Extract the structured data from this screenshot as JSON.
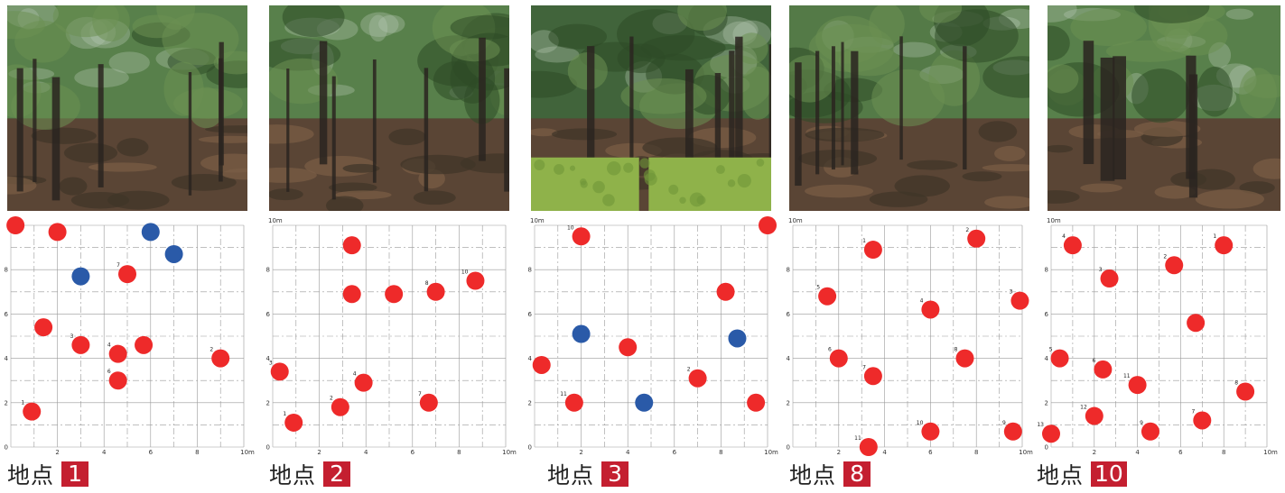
{
  "colors": {
    "red_point": "#ee2a2a",
    "blue_point": "#2a5aa8",
    "badge": "#c41f30"
  },
  "chart_data": [
    {
      "type": "scatter",
      "caption_text": "地点",
      "caption_num": "1",
      "xlim": [
        0,
        10
      ],
      "ylim": [
        0,
        10
      ],
      "x_ticks": [
        "2",
        "4",
        "6",
        "8",
        "10m"
      ],
      "y_ticks": [
        "2",
        "4",
        "6",
        "8"
      ],
      "grid": true,
      "photo": "forest",
      "points": [
        {
          "x": 0.2,
          "y": 10.0,
          "color": "red",
          "label": ""
        },
        {
          "x": 2.0,
          "y": 9.7,
          "color": "red",
          "label": ""
        },
        {
          "x": 6.0,
          "y": 9.7,
          "color": "blue",
          "label": ""
        },
        {
          "x": 7.0,
          "y": 8.7,
          "color": "blue",
          "label": ""
        },
        {
          "x": 3.0,
          "y": 7.7,
          "color": "blue",
          "label": ""
        },
        {
          "x": 5.0,
          "y": 7.8,
          "color": "red",
          "label": "7"
        },
        {
          "x": 1.4,
          "y": 5.4,
          "color": "red",
          "label": ""
        },
        {
          "x": 3.0,
          "y": 4.6,
          "color": "red",
          "label": "3"
        },
        {
          "x": 4.6,
          "y": 4.2,
          "color": "red",
          "label": "4"
        },
        {
          "x": 5.7,
          "y": 4.6,
          "color": "red",
          "label": ""
        },
        {
          "x": 9.0,
          "y": 4.0,
          "color": "red",
          "label": "2"
        },
        {
          "x": 4.6,
          "y": 3.0,
          "color": "red",
          "label": "6"
        },
        {
          "x": 0.9,
          "y": 1.6,
          "color": "red",
          "label": "1"
        }
      ]
    },
    {
      "type": "scatter",
      "caption_text": "地点",
      "caption_num": "2",
      "xlim": [
        0,
        10
      ],
      "ylim": [
        0,
        10
      ],
      "top_label": "10m",
      "x_ticks": [
        "2",
        "4",
        "6",
        "8",
        "10m"
      ],
      "y_ticks": [
        "2",
        "4",
        "6",
        "8"
      ],
      "grid": true,
      "photo": "forest",
      "points": [
        {
          "x": 3.4,
          "y": 9.1,
          "color": "red",
          "label": ""
        },
        {
          "x": 3.4,
          "y": 6.9,
          "color": "red",
          "label": ""
        },
        {
          "x": 5.2,
          "y": 6.9,
          "color": "red",
          "label": ""
        },
        {
          "x": 7.0,
          "y": 7.0,
          "color": "red",
          "label": "8"
        },
        {
          "x": 8.7,
          "y": 7.5,
          "color": "red",
          "label": "10"
        },
        {
          "x": 0.3,
          "y": 3.4,
          "color": "red",
          "label": "3"
        },
        {
          "x": 3.9,
          "y": 2.9,
          "color": "red",
          "label": "4"
        },
        {
          "x": 2.9,
          "y": 1.8,
          "color": "red",
          "label": "2"
        },
        {
          "x": 6.7,
          "y": 2.0,
          "color": "red",
          "label": "7"
        },
        {
          "x": 0.9,
          "y": 1.1,
          "color": "red",
          "label": "1"
        }
      ]
    },
    {
      "type": "scatter",
      "caption_text": "地点",
      "caption_num": "3",
      "xlim": [
        0,
        10
      ],
      "ylim": [
        0,
        10
      ],
      "top_label": "10m",
      "x_ticks": [
        "2",
        "4",
        "6",
        "8",
        "10m"
      ],
      "y_ticks": [
        "2",
        "4",
        "6",
        "8"
      ],
      "grid": true,
      "photo": "hedge",
      "points": [
        {
          "x": 2.0,
          "y": 9.5,
          "color": "red",
          "label": "10"
        },
        {
          "x": 10.0,
          "y": 10.0,
          "color": "red",
          "label": ""
        },
        {
          "x": 8.2,
          "y": 7.0,
          "color": "red",
          "label": ""
        },
        {
          "x": 2.0,
          "y": 5.1,
          "color": "blue",
          "label": ""
        },
        {
          "x": 8.7,
          "y": 4.9,
          "color": "blue",
          "label": ""
        },
        {
          "x": 4.0,
          "y": 4.5,
          "color": "red",
          "label": ""
        },
        {
          "x": 0.3,
          "y": 3.7,
          "color": "red",
          "label": ""
        },
        {
          "x": 7.0,
          "y": 3.1,
          "color": "red",
          "label": "2"
        },
        {
          "x": 1.7,
          "y": 2.0,
          "color": "red",
          "label": "11"
        },
        {
          "x": 4.7,
          "y": 2.0,
          "color": "blue",
          "label": ""
        },
        {
          "x": 9.5,
          "y": 2.0,
          "color": "red",
          "label": ""
        }
      ]
    },
    {
      "type": "scatter",
      "caption_text": "地点",
      "caption_num": "8",
      "xlim": [
        0,
        10
      ],
      "ylim": [
        0,
        10
      ],
      "top_label": "10m",
      "x_ticks": [
        "2",
        "4",
        "6",
        "8",
        "10m"
      ],
      "y_ticks": [
        "2",
        "4",
        "6",
        "8"
      ],
      "grid": true,
      "photo": "forest-dark",
      "points": [
        {
          "x": 3.5,
          "y": 8.9,
          "color": "red",
          "label": "1"
        },
        {
          "x": 8.0,
          "y": 9.4,
          "color": "red",
          "label": "2"
        },
        {
          "x": 1.5,
          "y": 6.8,
          "color": "red",
          "label": "5"
        },
        {
          "x": 6.0,
          "y": 6.2,
          "color": "red",
          "label": "4"
        },
        {
          "x": 9.9,
          "y": 6.6,
          "color": "red",
          "label": "3"
        },
        {
          "x": 2.0,
          "y": 4.0,
          "color": "red",
          "label": "6"
        },
        {
          "x": 3.5,
          "y": 3.2,
          "color": "red",
          "label": "7"
        },
        {
          "x": 7.5,
          "y": 4.0,
          "color": "red",
          "label": "8"
        },
        {
          "x": 6.0,
          "y": 0.7,
          "color": "red",
          "label": "10"
        },
        {
          "x": 9.6,
          "y": 0.7,
          "color": "red",
          "label": "9"
        },
        {
          "x": 3.3,
          "y": 0.0,
          "color": "red",
          "label": "11"
        }
      ]
    },
    {
      "type": "scatter",
      "caption_text": "地点",
      "caption_num": "10",
      "xlim": [
        0,
        10
      ],
      "ylim": [
        0,
        10
      ],
      "top_label": "10m",
      "x_ticks": [
        "2",
        "4",
        "6",
        "8",
        "10m"
      ],
      "y_ticks": [
        "2",
        "4",
        "6",
        "8"
      ],
      "grid": true,
      "photo": "forest-trunk",
      "points": [
        {
          "x": 1.0,
          "y": 9.1,
          "color": "red",
          "label": "4"
        },
        {
          "x": 8.0,
          "y": 9.1,
          "color": "red",
          "label": "1"
        },
        {
          "x": 2.7,
          "y": 7.6,
          "color": "red",
          "label": "3"
        },
        {
          "x": 5.7,
          "y": 8.2,
          "color": "red",
          "label": "2"
        },
        {
          "x": 6.7,
          "y": 5.6,
          "color": "red",
          "label": ""
        },
        {
          "x": 0.4,
          "y": 4.0,
          "color": "red",
          "label": "5"
        },
        {
          "x": 2.4,
          "y": 3.5,
          "color": "red",
          "label": "6"
        },
        {
          "x": 4.0,
          "y": 2.8,
          "color": "red",
          "label": "11"
        },
        {
          "x": 9.0,
          "y": 2.5,
          "color": "red",
          "label": "8"
        },
        {
          "x": 2.0,
          "y": 1.4,
          "color": "red",
          "label": "12"
        },
        {
          "x": 7.0,
          "y": 1.2,
          "color": "red",
          "label": "7"
        },
        {
          "x": 4.6,
          "y": 0.7,
          "color": "red",
          "label": "9"
        },
        {
          "x": 0.0,
          "y": 0.6,
          "color": "red",
          "label": "13"
        }
      ]
    }
  ]
}
